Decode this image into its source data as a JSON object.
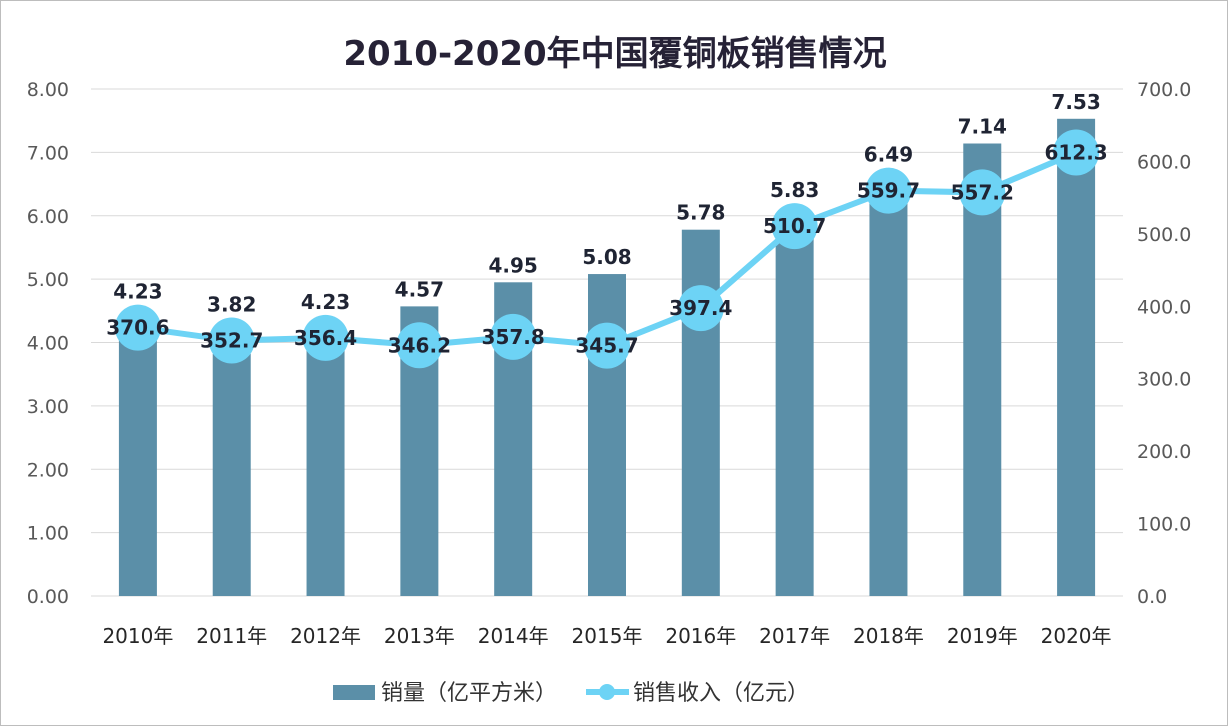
{
  "chart_data": {
    "type": "bar+line",
    "title": "2010-2020年中国覆铜板销售情况",
    "categories": [
      "2010年",
      "2011年",
      "2012年",
      "2013年",
      "2014年",
      "2015年",
      "2016年",
      "2017年",
      "2018年",
      "2019年",
      "2020年"
    ],
    "series": [
      {
        "name": "销量（亿平方米）",
        "type": "bar",
        "axis": "left",
        "color": "#5b8fa8",
        "values": [
          4.23,
          3.82,
          4.23,
          4.57,
          4.95,
          5.08,
          5.78,
          5.83,
          6.49,
          7.14,
          7.53
        ],
        "labels": [
          "4.23",
          "3.82",
          "4.23",
          "4.57",
          "4.95",
          "5.08",
          "5.78",
          "5.83",
          "6.49",
          "7.14",
          "7.53"
        ]
      },
      {
        "name": "销售收入（亿元）",
        "type": "line",
        "axis": "right",
        "color": "#6dd3f5",
        "values": [
          370.6,
          352.7,
          356.4,
          346.2,
          357.8,
          345.7,
          397.4,
          510.7,
          559.7,
          557.2,
          612.3
        ],
        "labels": [
          "370.6",
          "352.7",
          "356.4",
          "346.2",
          "357.8",
          "345.7",
          "397.4",
          "510.7",
          "559.7",
          "557.2",
          "612.3"
        ]
      }
    ],
    "left_axis": {
      "ylim": [
        0,
        8
      ],
      "ticks": [
        "0.00",
        "1.00",
        "2.00",
        "3.00",
        "4.00",
        "5.00",
        "6.00",
        "7.00",
        "8.00"
      ]
    },
    "right_axis": {
      "ylim": [
        0,
        700
      ],
      "ticks": [
        "0.0",
        "100.0",
        "200.0",
        "300.0",
        "400.0",
        "500.0",
        "600.0",
        "700.0"
      ]
    },
    "grid": true,
    "legend": "bottom"
  }
}
